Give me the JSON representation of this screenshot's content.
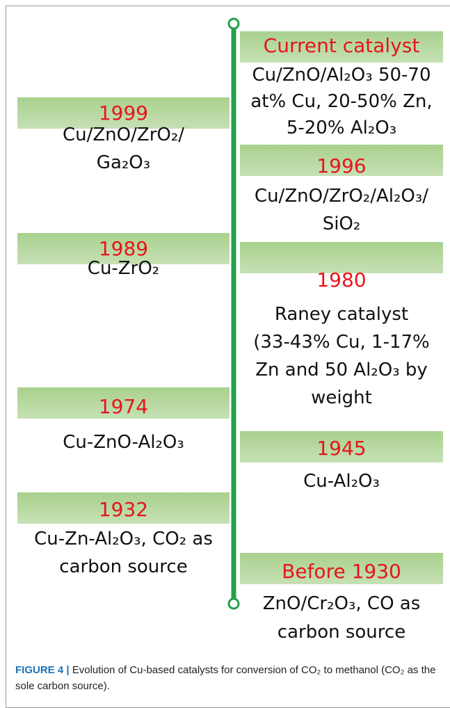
{
  "events": [
    {
      "year": "Current catalyst",
      "lines": [
        "Cu/ZnO/Al₂O₃ 50-70",
        "at% Cu, 20-50% Zn,",
        "5-20% Al₂O₃"
      ]
    },
    {
      "year": "1999",
      "lines": [
        "Cu/ZnO/ZrO₂/",
        "Ga₂O₃"
      ]
    },
    {
      "year": "1996",
      "lines": [
        "Cu/ZnO/ZrO₂/Al₂O₃/",
        "SiO₂"
      ]
    },
    {
      "year": "1989",
      "lines": [
        "Cu-ZrO₂"
      ]
    },
    {
      "year": "1980",
      "lines": [
        "Raney catalyst",
        "(33-43% Cu, 1-17%",
        "Zn and 50 Al₂O₃ by",
        "weight"
      ]
    },
    {
      "year": "1974",
      "lines": [
        "Cu-ZnO-Al₂O₃"
      ]
    },
    {
      "year": "1945",
      "lines": [
        "Cu-Al₂O₃"
      ]
    },
    {
      "year": "1932",
      "lines": [
        "Cu-Zn-Al₂O₃, CO₂ as",
        "carbon source"
      ]
    },
    {
      "year": "Before 1930",
      "lines": [
        "ZnO/Cr₂O₃, CO as",
        "carbon source"
      ]
    }
  ],
  "caption": {
    "label": "FIGURE 4 |",
    "text": "Evolution of Cu-based catalysts for conversion of CO₂ to methanol (CO₂ as the sole carbon source)."
  }
}
